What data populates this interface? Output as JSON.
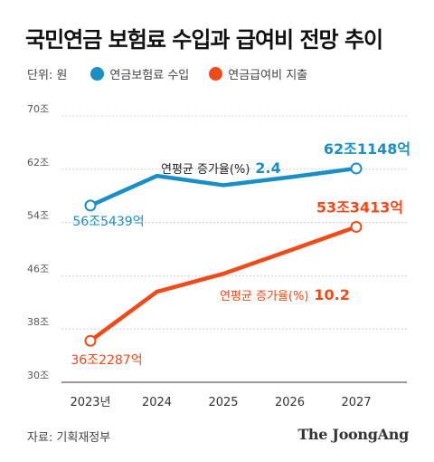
{
  "title": "국민연금 보험료 수입과 급여비 전망 추이",
  "unit_label": "단위: 원",
  "source": "자료: 기획재정부",
  "brand": "The JoongAng",
  "annotations": {
    "revenue_growth_label": "연평균 증가율(%)",
    "revenue_growth_value": "2.4",
    "expense_growth_label": "연평균 증가율(%)",
    "expense_growth_value": "10.2"
  },
  "chart_data": {
    "type": "line",
    "categories": [
      "2023년",
      "2024",
      "2025",
      "2026",
      "2027"
    ],
    "x": [
      2023,
      2024,
      2025,
      2026,
      2027
    ],
    "yticks": [
      "30조",
      "38조",
      "46조",
      "54조",
      "62조",
      "70조"
    ],
    "ylim": [
      30,
      70
    ],
    "grid": true,
    "legend_position": "top-left",
    "series": [
      {
        "name": "연금보험료 수입",
        "color": "#1a8fc4",
        "points": [
          [
            2023,
            56.5439
          ],
          [
            2024,
            61.0
          ],
          [
            2025,
            59.6
          ],
          [
            2026,
            60.8
          ],
          [
            2027,
            62.1148
          ]
        ],
        "labels": [
          {
            "x": 2023,
            "text": "56조5439억"
          },
          {
            "x": 2027,
            "text": "62조1148억"
          }
        ]
      },
      {
        "name": "연금급여비 지출",
        "color": "#f04a1a",
        "points": [
          [
            2023,
            36.2287
          ],
          [
            2024,
            43.6
          ],
          [
            2025,
            46.3
          ],
          [
            2026,
            49.8
          ],
          [
            2027,
            53.3413
          ]
        ],
        "labels": [
          {
            "x": 2023,
            "text": "36조2287억"
          },
          {
            "x": 2027,
            "text": "53조3413억"
          }
        ]
      }
    ]
  }
}
